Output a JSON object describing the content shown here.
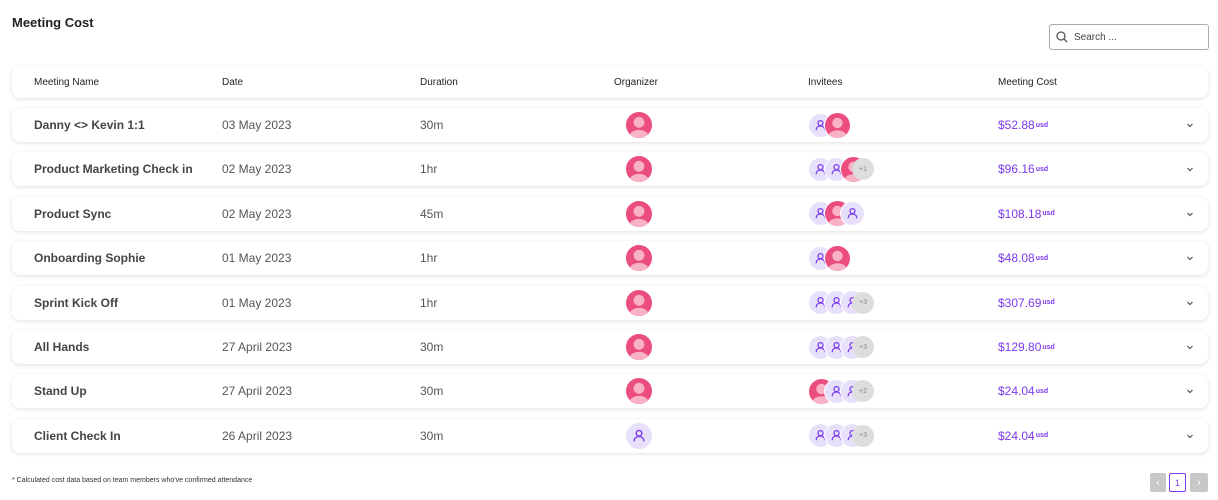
{
  "header": {
    "title": "Meeting Cost",
    "search_placeholder": "Search ..."
  },
  "table": {
    "columns": [
      "Meeting Name",
      "Date",
      "Duration",
      "Organizer",
      "Invitees",
      "Meeting Cost"
    ],
    "currency": "usd",
    "rows": [
      {
        "name": "Danny <> Kevin 1:1",
        "date": "03 May 2023",
        "duration": "30m",
        "organizer": "photo",
        "invitees": [
          "icon",
          "photo"
        ],
        "cost": "$52.88"
      },
      {
        "name": "Product Marketing Check in",
        "date": "02 May 2023",
        "duration": "1hr",
        "organizer": "photo",
        "invitees": [
          "icon",
          "icon",
          "photo"
        ],
        "more": "+1",
        "cost": "$96.16"
      },
      {
        "name": "Product Sync",
        "date": "02 May 2023",
        "duration": "45m",
        "organizer": "photo",
        "invitees": [
          "icon",
          "photo",
          "icon"
        ],
        "cost": "$108.18"
      },
      {
        "name": "Onboarding Sophie",
        "date": "01 May 2023",
        "duration": "1hr",
        "organizer": "photo",
        "invitees": [
          "icon",
          "photo"
        ],
        "cost": "$48.08"
      },
      {
        "name": "Sprint Kick Off",
        "date": "01 May 2023",
        "duration": "1hr",
        "organizer": "photo",
        "invitees": [
          "icon",
          "icon",
          "icon"
        ],
        "more": "+3",
        "cost": "$307.69"
      },
      {
        "name": "All Hands",
        "date": "27 April 2023",
        "duration": "30m",
        "organizer": "photo",
        "invitees": [
          "icon",
          "icon",
          "icon"
        ],
        "more": "+3",
        "cost": "$129.80"
      },
      {
        "name": "Stand Up",
        "date": "27 April 2023",
        "duration": "30m",
        "organizer": "photo",
        "invitees": [
          "photo",
          "icon",
          "icon"
        ],
        "more": "+2",
        "cost": "$24.04"
      },
      {
        "name": "Client Check In",
        "date": "26 April 2023",
        "duration": "30m",
        "organizer": "icon",
        "invitees": [
          "icon",
          "icon",
          "icon"
        ],
        "more": "+3",
        "cost": "$24.04"
      }
    ]
  },
  "footer": {
    "note": "* Calculated cost data based on team members who've confirmed attendance",
    "page": "1"
  }
}
